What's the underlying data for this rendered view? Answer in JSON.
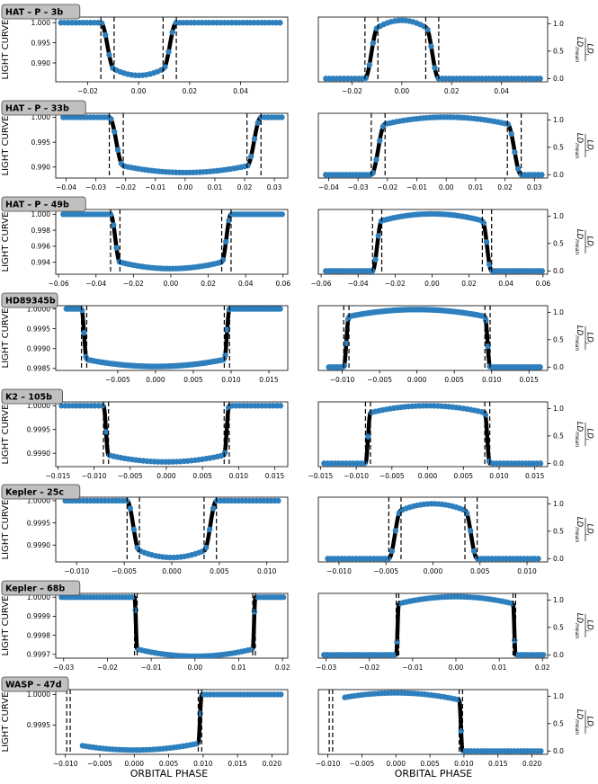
{
  "figure": {
    "xlabel": "ORBITAL PHASE",
    "left_ylabel": "LIGHT CURVE",
    "right_ylabel_main": "LD",
    "right_ylabel_sub": "i",
    "right_ylabel_den": "LD",
    "right_ylabel_den_sub": "mean",
    "colors": {
      "points": "#2e7fbd",
      "model": "#000000",
      "badge_fill": "#c0c0c0",
      "badge_stroke": "#444444"
    }
  },
  "chart_data": [
    {
      "type": "scatter",
      "planet": "HAT – P – 3b",
      "panel": "light-curve",
      "xlim": [
        -0.0325,
        0.0585
      ],
      "ylim": [
        0.9853,
        1.0014
      ],
      "xticks": [
        -0.02,
        0.0,
        0.02,
        0.04
      ],
      "xtick_labels": [
        "−0.02",
        "0.00",
        "0.02",
        "0.04"
      ],
      "yticks": [
        0.99,
        0.995,
        1.0
      ],
      "ytick_labels": [
        "0.990",
        "0.995",
        "1.000"
      ],
      "t1": 0.0148,
      "t2": 0.0096,
      "baseline": 1.0,
      "min": 0.9869,
      "contacts": [
        -0.0148,
        -0.0096,
        0.0096,
        0.0148
      ],
      "x_start": -0.0305,
      "x_end": 0.0555,
      "n_points": 60
    },
    {
      "type": "scatter",
      "planet": "HAT – P – 3b",
      "panel": "limb-darkening",
      "xlim": [
        -0.0335,
        0.0585
      ],
      "ylim": [
        -0.06,
        1.12
      ],
      "xticks": [
        -0.02,
        0.0,
        0.02,
        0.04
      ],
      "xtick_labels": [
        "−0.02",
        "0.00",
        "0.02",
        "0.04"
      ],
      "yticks": [
        0.0,
        0.5,
        1.0
      ],
      "ytick_labels": [
        "0.0",
        "0.5",
        "1.0"
      ],
      "t1": 0.0148,
      "t2": 0.0096,
      "peak": 1.06,
      "contacts": [
        -0.0148,
        -0.0096,
        0.0096,
        0.0148
      ],
      "x_start": -0.0305,
      "x_end": 0.0555,
      "n_points": 60
    },
    {
      "type": "scatter",
      "planet": "HAT – P – 33b",
      "panel": "light-curve",
      "xlim": [
        -0.0435,
        0.0345
      ],
      "ylim": [
        0.9878,
        1.0008
      ],
      "xticks": [
        -0.04,
        -0.03,
        -0.02,
        -0.01,
        0.0,
        0.01,
        0.02,
        0.03
      ],
      "xtick_labels": [
        "−0.04",
        "−0.03",
        "−0.02",
        "−0.01",
        "0.00",
        "0.01",
        "0.02",
        "0.03"
      ],
      "yticks": [
        0.99,
        0.995,
        1.0
      ],
      "ytick_labels": [
        "0.990",
        "0.995",
        "1.000"
      ],
      "t1": 0.0255,
      "t2": 0.0208,
      "baseline": 1.0,
      "min": 0.9889,
      "contacts": [
        -0.0255,
        -0.0208,
        0.0208,
        0.0255
      ],
      "x_start": -0.041,
      "x_end": 0.0325,
      "n_points": 65
    },
    {
      "type": "scatter",
      "planet": "HAT – P – 33b",
      "panel": "limb-darkening",
      "xlim": [
        -0.0435,
        0.0345
      ],
      "ylim": [
        -0.06,
        1.12
      ],
      "xticks": [
        -0.04,
        -0.03,
        -0.02,
        -0.01,
        0.0,
        0.01,
        0.02,
        0.03
      ],
      "xtick_labels": [
        "−0.04",
        "−0.03",
        "−0.02",
        "−0.01",
        "0.00",
        "0.01",
        "0.02",
        "0.03"
      ],
      "yticks": [
        0.0,
        0.5,
        1.0
      ],
      "ytick_labels": [
        "0.0",
        "0.5",
        "1.0"
      ],
      "t1": 0.0255,
      "t2": 0.0208,
      "peak": 1.05,
      "contacts": [
        -0.0255,
        -0.0208,
        0.0208,
        0.0255
      ],
      "x_start": -0.041,
      "x_end": 0.0325,
      "n_points": 65
    },
    {
      "type": "scatter",
      "planet": "HAT – P – 49b",
      "panel": "light-curve",
      "xlim": [
        -0.0615,
        0.0625
      ],
      "ylim": [
        0.9925,
        1.0006
      ],
      "xticks": [
        -0.06,
        -0.04,
        -0.02,
        0.0,
        0.02,
        0.04,
        0.06
      ],
      "xtick_labels": [
        "−0.06",
        "−0.04",
        "−0.02",
        "0.00",
        "0.02",
        "0.04",
        "0.06"
      ],
      "yticks": [
        0.994,
        0.996,
        0.998,
        1.0
      ],
      "ytick_labels": [
        "0.994",
        "0.996",
        "0.998",
        "1.000"
      ],
      "t1": 0.0322,
      "t2": 0.0272,
      "baseline": 1.0,
      "min": 0.9932,
      "contacts": [
        -0.0322,
        -0.0272,
        0.0272,
        0.0322
      ],
      "x_start": -0.0575,
      "x_end": 0.0595,
      "n_points": 75
    },
    {
      "type": "scatter",
      "planet": "HAT – P – 49b",
      "panel": "limb-darkening",
      "xlim": [
        -0.0615,
        0.0625
      ],
      "ylim": [
        -0.06,
        1.12
      ],
      "xticks": [
        -0.06,
        -0.04,
        -0.02,
        0.0,
        0.02,
        0.04,
        0.06
      ],
      "xtick_labels": [
        "−0.06",
        "−0.04",
        "−0.02",
        "0.00",
        "0.02",
        "0.04",
        "0.06"
      ],
      "yticks": [
        0.0,
        0.5,
        1.0
      ],
      "ytick_labels": [
        "0.0",
        "0.5",
        "1.0"
      ],
      "t1": 0.0322,
      "t2": 0.0272,
      "peak": 1.04,
      "contacts": [
        -0.0322,
        -0.0272,
        0.0272,
        0.0322
      ],
      "x_start": -0.0575,
      "x_end": 0.0595,
      "n_points": 75
    },
    {
      "type": "scatter",
      "planet": "HD89345b",
      "panel": "light-curve",
      "xlim": [
        -0.0132,
        0.0175
      ],
      "ylim": [
        0.99845,
        1.00008
      ],
      "xticks": [
        -0.005,
        0.0,
        0.005,
        0.01,
        0.015
      ],
      "xtick_labels": [
        "−0.005",
        "0.000",
        "0.005",
        "0.010",
        "0.015"
      ],
      "yticks": [
        0.9985,
        0.999,
        0.9995,
        1.0
      ],
      "ytick_labels": [
        "0.9985",
        "0.9990",
        "0.9995",
        "1.0000"
      ],
      "t1": 0.0098,
      "t2": 0.0091,
      "baseline": 1.0,
      "min": 0.99855,
      "contacts": [
        -0.0098,
        -0.0091,
        0.0091,
        0.0098
      ],
      "x_start": -0.0118,
      "x_end": 0.0165,
      "n_points": 110
    },
    {
      "type": "scatter",
      "planet": "HD89345b",
      "panel": "limb-darkening",
      "xlim": [
        -0.0132,
        0.0175
      ],
      "ylim": [
        -0.06,
        1.12
      ],
      "xticks": [
        -0.01,
        -0.005,
        0.0,
        0.005,
        0.01,
        0.015
      ],
      "xtick_labels": [
        "−0.010",
        "−0.005",
        "0.000",
        "0.005",
        "0.010",
        "0.015"
      ],
      "yticks": [
        0.0,
        0.5,
        1.0
      ],
      "ytick_labels": [
        "0.0",
        "0.5",
        "1.0"
      ],
      "t1": 0.0098,
      "t2": 0.0091,
      "peak": 1.05,
      "contacts": [
        -0.0098,
        -0.0091,
        0.0091,
        0.0098
      ],
      "x_start": -0.0118,
      "x_end": 0.0165,
      "n_points": 110
    },
    {
      "type": "scatter",
      "planet": "K2 – 105b",
      "panel": "light-curve",
      "xlim": [
        -0.0153,
        0.0168
      ],
      "ylim": [
        0.99872,
        1.00008
      ],
      "xticks": [
        -0.015,
        -0.01,
        -0.005,
        0.0,
        0.005,
        0.01,
        0.015
      ],
      "xtick_labels": [
        "−0.015",
        "−0.010",
        "−0.005",
        "0.000",
        "0.005",
        "0.010",
        "0.015"
      ],
      "yticks": [
        0.999,
        0.9995,
        1.0
      ],
      "ytick_labels": [
        "0.9990",
        "0.9995",
        "1.0000"
      ],
      "t1": 0.0087,
      "t2": 0.008,
      "baseline": 1.0,
      "min": 0.99882,
      "contacts": [
        -0.0087,
        -0.008,
        0.008,
        0.0087
      ],
      "x_start": -0.0145,
      "x_end": 0.0158,
      "n_points": 60
    },
    {
      "type": "scatter",
      "planet": "K2 – 105b",
      "panel": "limb-darkening",
      "xlim": [
        -0.0153,
        0.0168
      ],
      "ylim": [
        -0.06,
        1.12
      ],
      "xticks": [
        -0.015,
        -0.01,
        -0.005,
        0.0,
        0.005,
        0.01,
        0.015
      ],
      "xtick_labels": [
        "−0.015",
        "−0.010",
        "−0.005",
        "0.000",
        "0.005",
        "0.010",
        "0.015"
      ],
      "yticks": [
        0.0,
        0.5,
        1.0
      ],
      "ytick_labels": [
        "0.0",
        "0.5",
        "1.0"
      ],
      "t1": 0.0087,
      "t2": 0.008,
      "peak": 1.05,
      "contacts": [
        -0.0087,
        -0.008,
        0.008,
        0.0087
      ],
      "x_start": -0.0145,
      "x_end": 0.0158,
      "n_points": 60
    },
    {
      "type": "scatter",
      "planet": "Kepler – 25c",
      "panel": "light-curve",
      "xlim": [
        -0.0122,
        0.0122
      ],
      "ylim": [
        0.99862,
        1.00008
      ],
      "xticks": [
        -0.01,
        -0.005,
        0.0,
        0.005,
        0.01
      ],
      "xtick_labels": [
        "−0.010",
        "−0.005",
        "0.000",
        "0.005",
        "0.010"
      ],
      "yticks": [
        0.999,
        0.9995,
        1.0
      ],
      "ytick_labels": [
        "0.9990",
        "0.9995",
        "1.0000"
      ],
      "t1": 0.0047,
      "t2": 0.0034,
      "baseline": 1.0,
      "min": 0.99872,
      "contacts": [
        -0.0047,
        -0.0034,
        0.0034,
        0.0047
      ],
      "x_start": -0.0112,
      "x_end": 0.0112,
      "n_points": 60
    },
    {
      "type": "scatter",
      "planet": "Kepler – 25c",
      "panel": "limb-darkening",
      "xlim": [
        -0.0122,
        0.0122
      ],
      "ylim": [
        -0.06,
        1.12
      ],
      "xticks": [
        -0.01,
        -0.005,
        0.0,
        0.005,
        0.01
      ],
      "xtick_labels": [
        "−0.010",
        "−0.005",
        "0.000",
        "0.005",
        "0.010"
      ],
      "yticks": [
        0.0,
        0.5,
        1.0
      ],
      "ytick_labels": [
        "0.0",
        "0.5",
        "1.0"
      ],
      "t1": 0.0047,
      "t2": 0.0034,
      "peak": 1.0,
      "contacts": [
        -0.0047,
        -0.0034,
        0.0034,
        0.0047
      ],
      "x_start": -0.0112,
      "x_end": 0.0112,
      "n_points": 60
    },
    {
      "type": "scatter",
      "planet": "Kepler – 68b",
      "panel": "light-curve",
      "xlim": [
        -0.0318,
        0.0212
      ],
      "ylim": [
        0.99968,
        1.00002
      ],
      "xticks": [
        -0.03,
        -0.02,
        -0.01,
        0.0,
        0.01,
        0.02
      ],
      "xtick_labels": [
        "−0.03",
        "−0.02",
        "−0.01",
        "0.00",
        "0.01",
        "0.02"
      ],
      "yticks": [
        0.9997,
        0.9998,
        0.9999,
        1.0
      ],
      "ytick_labels": [
        "0.9997",
        "0.9998",
        "0.9999",
        "1.0000"
      ],
      "t1": 0.0138,
      "t2": 0.0132,
      "baseline": 1.0,
      "min": 0.99969,
      "contacts": [
        -0.0138,
        -0.0132,
        0.0132,
        0.0138
      ],
      "x_start": -0.0305,
      "x_end": 0.0202,
      "n_points": 70
    },
    {
      "type": "scatter",
      "planet": "Kepler – 68b",
      "panel": "limb-darkening",
      "xlim": [
        -0.0318,
        0.0212
      ],
      "ylim": [
        -0.06,
        1.12
      ],
      "xticks": [
        -0.03,
        -0.02,
        -0.01,
        0.0,
        0.01,
        0.02
      ],
      "xtick_labels": [
        "−0.03",
        "−0.02",
        "−0.01",
        "0.00",
        "0.01",
        "0.02"
      ],
      "yticks": [
        0.0,
        0.5,
        1.0
      ],
      "ytick_labels": [
        "0.0",
        "0.5",
        "1.0"
      ],
      "t1": 0.0138,
      "t2": 0.0132,
      "peak": 1.06,
      "contacts": [
        -0.0138,
        -0.0132,
        0.0132,
        0.0138
      ],
      "x_start": -0.0305,
      "x_end": 0.0202,
      "n_points": 70
    },
    {
      "type": "scatter",
      "planet": "WASP – 47d",
      "panel": "light-curve",
      "xlim": [
        -0.0114,
        0.0223
      ],
      "ylim": [
        0.99902,
        1.00008
      ],
      "xticks": [
        -0.01,
        -0.005,
        0.0,
        0.005,
        0.01,
        0.015,
        0.02
      ],
      "xtick_labels": [
        "−0.010",
        "−0.005",
        "0.000",
        "0.005",
        "0.010",
        "0.015",
        "0.020"
      ],
      "yticks": [
        0.9995,
        1.0
      ],
      "ytick_labels": [
        "0.9995",
        "1.0000"
      ],
      "t1": 0.0098,
      "t2": 0.0093,
      "baseline": 1.0,
      "min": 0.99909,
      "contacts": [
        -0.0098,
        -0.0093,
        0.0093,
        0.0098
      ],
      "x_start": -0.0075,
      "x_end": 0.0213,
      "n_points": 60
    },
    {
      "type": "scatter",
      "planet": "WASP – 47d",
      "panel": "limb-darkening",
      "xlim": [
        -0.0114,
        0.0223
      ],
      "ylim": [
        -0.06,
        1.12
      ],
      "xticks": [
        -0.01,
        -0.005,
        0.0,
        0.005,
        0.01,
        0.015,
        0.02
      ],
      "xtick_labels": [
        "−0.010",
        "−0.005",
        "0.000",
        "0.005",
        "0.010",
        "0.015",
        "0.020"
      ],
      "yticks": [
        0.0,
        0.5,
        1.0
      ],
      "ytick_labels": [
        "0.0",
        "0.5",
        "1.0"
      ],
      "t1": 0.0098,
      "t2": 0.0093,
      "peak": 1.06,
      "contacts": [
        -0.0098,
        -0.0093,
        0.0093,
        0.0098
      ],
      "x_start": -0.0075,
      "x_end": 0.0213,
      "n_points": 60
    }
  ]
}
